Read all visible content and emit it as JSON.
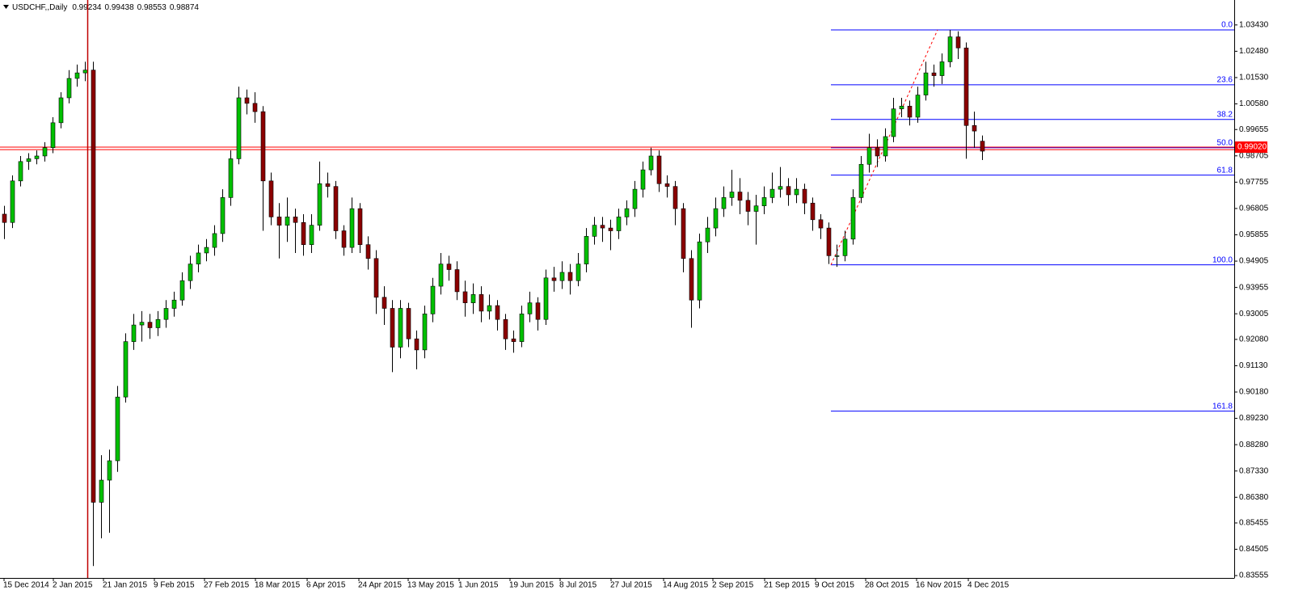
{
  "chart_data": {
    "type": "candlestick",
    "title": "USDCHF,,Daily",
    "header_values": [
      0.99234,
      0.99438,
      0.98553,
      0.98874
    ],
    "up_color": "#00c000",
    "down_color": "#8b0000",
    "wick_color": "#000000",
    "candles": [
      [
        0.966,
        0.969,
        0.957,
        0.963
      ],
      [
        0.963,
        0.98,
        0.961,
        0.978
      ],
      [
        0.978,
        0.987,
        0.976,
        0.985
      ],
      [
        0.985,
        0.988,
        0.982,
        0.986
      ],
      [
        0.986,
        0.989,
        0.984,
        0.987
      ],
      [
        0.987,
        0.992,
        0.985,
        0.99
      ],
      [
        0.99,
        1.001,
        0.988,
        0.999
      ],
      [
        0.999,
        1.01,
        0.997,
        1.008
      ],
      [
        1.008,
        1.018,
        1.006,
        1.015
      ],
      [
        1.015,
        1.02,
        1.012,
        1.017
      ],
      [
        1.017,
        1.021,
        1.014,
        1.018
      ],
      [
        1.018,
        1.021,
        0.839,
        0.862
      ],
      [
        0.862,
        0.879,
        0.849,
        0.87
      ],
      [
        0.87,
        0.881,
        0.851,
        0.877
      ],
      [
        0.877,
        0.904,
        0.873,
        0.9
      ],
      [
        0.9,
        0.923,
        0.898,
        0.92
      ],
      [
        0.92,
        0.93,
        0.917,
        0.926
      ],
      [
        0.926,
        0.931,
        0.92,
        0.927
      ],
      [
        0.927,
        0.93,
        0.921,
        0.925
      ],
      [
        0.925,
        0.931,
        0.922,
        0.928
      ],
      [
        0.928,
        0.935,
        0.925,
        0.932
      ],
      [
        0.932,
        0.938,
        0.929,
        0.935
      ],
      [
        0.935,
        0.945,
        0.933,
        0.942
      ],
      [
        0.942,
        0.951,
        0.939,
        0.948
      ],
      [
        0.948,
        0.955,
        0.945,
        0.952
      ],
      [
        0.952,
        0.957,
        0.949,
        0.954
      ],
      [
        0.954,
        0.962,
        0.951,
        0.959
      ],
      [
        0.959,
        0.975,
        0.956,
        0.972
      ],
      [
        0.972,
        0.989,
        0.969,
        0.986
      ],
      [
        0.986,
        1.012,
        0.984,
        1.008
      ],
      [
        1.008,
        1.011,
        1.002,
        1.006
      ],
      [
        1.006,
        1.01,
        0.999,
        1.003
      ],
      [
        1.003,
        1.005,
        0.96,
        0.978
      ],
      [
        0.978,
        0.981,
        0.962,
        0.965
      ],
      [
        0.965,
        0.97,
        0.95,
        0.962
      ],
      [
        0.962,
        0.972,
        0.956,
        0.965
      ],
      [
        0.965,
        0.968,
        0.952,
        0.963
      ],
      [
        0.963,
        0.966,
        0.951,
        0.955
      ],
      [
        0.955,
        0.966,
        0.952,
        0.962
      ],
      [
        0.962,
        0.985,
        0.96,
        0.977
      ],
      [
        0.977,
        0.981,
        0.972,
        0.976
      ],
      [
        0.976,
        0.978,
        0.957,
        0.96
      ],
      [
        0.96,
        0.962,
        0.951,
        0.954
      ],
      [
        0.954,
        0.972,
        0.952,
        0.968
      ],
      [
        0.968,
        0.97,
        0.952,
        0.955
      ],
      [
        0.955,
        0.958,
        0.946,
        0.95
      ],
      [
        0.95,
        0.953,
        0.93,
        0.936
      ],
      [
        0.936,
        0.94,
        0.926,
        0.932
      ],
      [
        0.932,
        0.935,
        0.909,
        0.918
      ],
      [
        0.918,
        0.935,
        0.914,
        0.932
      ],
      [
        0.932,
        0.934,
        0.918,
        0.921
      ],
      [
        0.921,
        0.924,
        0.91,
        0.917
      ],
      [
        0.917,
        0.933,
        0.914,
        0.93
      ],
      [
        0.93,
        0.943,
        0.927,
        0.94
      ],
      [
        0.94,
        0.952,
        0.937,
        0.948
      ],
      [
        0.948,
        0.951,
        0.942,
        0.946
      ],
      [
        0.946,
        0.949,
        0.935,
        0.938
      ],
      [
        0.938,
        0.942,
        0.929,
        0.934
      ],
      [
        0.934,
        0.941,
        0.93,
        0.937
      ],
      [
        0.937,
        0.94,
        0.927,
        0.931
      ],
      [
        0.931,
        0.937,
        0.928,
        0.933
      ],
      [
        0.933,
        0.935,
        0.924,
        0.928
      ],
      [
        0.928,
        0.93,
        0.917,
        0.921
      ],
      [
        0.921,
        0.924,
        0.916,
        0.92
      ],
      [
        0.92,
        0.933,
        0.918,
        0.93
      ],
      [
        0.93,
        0.938,
        0.927,
        0.934
      ],
      [
        0.934,
        0.936,
        0.924,
        0.928
      ],
      [
        0.928,
        0.946,
        0.926,
        0.943
      ],
      [
        0.943,
        0.947,
        0.938,
        0.942
      ],
      [
        0.942,
        0.949,
        0.939,
        0.945
      ],
      [
        0.945,
        0.948,
        0.937,
        0.942
      ],
      [
        0.942,
        0.952,
        0.94,
        0.948
      ],
      [
        0.948,
        0.961,
        0.945,
        0.958
      ],
      [
        0.958,
        0.965,
        0.955,
        0.962
      ],
      [
        0.962,
        0.965,
        0.956,
        0.961
      ],
      [
        0.961,
        0.964,
        0.953,
        0.96
      ],
      [
        0.96,
        0.968,
        0.957,
        0.965
      ],
      [
        0.965,
        0.971,
        0.962,
        0.968
      ],
      [
        0.968,
        0.978,
        0.965,
        0.975
      ],
      [
        0.975,
        0.985,
        0.972,
        0.982
      ],
      [
        0.982,
        0.99,
        0.98,
        0.987
      ],
      [
        0.987,
        0.989,
        0.974,
        0.977
      ],
      [
        0.977,
        0.98,
        0.972,
        0.976
      ],
      [
        0.976,
        0.978,
        0.962,
        0.968
      ],
      [
        0.968,
        0.97,
        0.945,
        0.95
      ],
      [
        0.95,
        0.953,
        0.925,
        0.935
      ],
      [
        0.935,
        0.959,
        0.932,
        0.956
      ],
      [
        0.956,
        0.965,
        0.952,
        0.961
      ],
      [
        0.961,
        0.972,
        0.958,
        0.968
      ],
      [
        0.968,
        0.976,
        0.965,
        0.972
      ],
      [
        0.972,
        0.982,
        0.969,
        0.974
      ],
      [
        0.974,
        0.979,
        0.966,
        0.971
      ],
      [
        0.971,
        0.974,
        0.962,
        0.967
      ],
      [
        0.967,
        0.973,
        0.955,
        0.969
      ],
      [
        0.969,
        0.976,
        0.966,
        0.972
      ],
      [
        0.972,
        0.981,
        0.97,
        0.975
      ],
      [
        0.975,
        0.983,
        0.972,
        0.976
      ],
      [
        0.976,
        0.979,
        0.969,
        0.973
      ],
      [
        0.973,
        0.979,
        0.97,
        0.975
      ],
      [
        0.975,
        0.977,
        0.966,
        0.97
      ],
      [
        0.97,
        0.972,
        0.96,
        0.964
      ],
      [
        0.964,
        0.966,
        0.957,
        0.961
      ],
      [
        0.961,
        0.963,
        0.948,
        0.951
      ],
      [
        0.951,
        0.955,
        0.947,
        0.951
      ],
      [
        0.951,
        0.96,
        0.949,
        0.957
      ],
      [
        0.957,
        0.975,
        0.955,
        0.972
      ],
      [
        0.972,
        0.987,
        0.97,
        0.984
      ],
      [
        0.984,
        0.995,
        0.981,
        0.99
      ],
      [
        0.99,
        0.993,
        0.983,
        0.987
      ],
      [
        0.987,
        0.997,
        0.985,
        0.994
      ],
      [
        0.994,
        1.008,
        0.992,
        1.004
      ],
      [
        1.004,
        1.008,
        1.001,
        1.005
      ],
      [
        1.005,
        1.007,
        0.998,
        1.001
      ],
      [
        1.001,
        1.012,
        0.999,
        1.009
      ],
      [
        1.009,
        1.021,
        1.007,
        1.017
      ],
      [
        1.017,
        1.02,
        1.012,
        1.016
      ],
      [
        1.016,
        1.024,
        1.013,
        1.021
      ],
      [
        1.021,
        1.0325,
        1.019,
        1.03
      ],
      [
        1.03,
        1.032,
        1.022,
        1.026
      ],
      [
        1.026,
        1.028,
        0.986,
        0.998
      ],
      [
        0.998,
        1.003,
        0.99,
        0.996
      ],
      [
        0.99234,
        0.99438,
        0.98553,
        0.98874
      ]
    ],
    "ylim": [
      0.8347,
      1.0433
    ],
    "yticks": [
      {
        "value": 1.0343,
        "label": "1.03430"
      },
      {
        "value": 1.0248,
        "label": "1.02480"
      },
      {
        "value": 1.0153,
        "label": "1.01530"
      },
      {
        "value": 1.0058,
        "label": "1.00580"
      },
      {
        "value": 0.99655,
        "label": "0.99655"
      },
      {
        "value": 0.98705,
        "label": "0.98705"
      },
      {
        "value": 0.97755,
        "label": "0.97755"
      },
      {
        "value": 0.96805,
        "label": "0.96805"
      },
      {
        "value": 0.95855,
        "label": "0.95855"
      },
      {
        "value": 0.94905,
        "label": "0.94905"
      },
      {
        "value": 0.93955,
        "label": "0.93955"
      },
      {
        "value": 0.93005,
        "label": "0.93005"
      },
      {
        "value": 0.9208,
        "label": "0.92080"
      },
      {
        "value": 0.9113,
        "label": "0.91130"
      },
      {
        "value": 0.9018,
        "label": "0.90180"
      },
      {
        "value": 0.8923,
        "label": "0.89230"
      },
      {
        "value": 0.8828,
        "label": "0.88280"
      },
      {
        "value": 0.8733,
        "label": "0.87330"
      },
      {
        "value": 0.8638,
        "label": "0.86380"
      },
      {
        "value": 0.85455,
        "label": "0.85455"
      },
      {
        "value": 0.84505,
        "label": "0.84505"
      },
      {
        "value": 0.83555,
        "label": "0.83555"
      }
    ],
    "xticks": [
      {
        "value": 0,
        "label": "15 Dec 2014"
      },
      {
        "value": 6.1,
        "label": "2 Jan 2015"
      },
      {
        "value": 12.3,
        "label": "21 Jan 2015"
      },
      {
        "value": 18.6,
        "label": "9 Feb 2015"
      },
      {
        "value": 24.8,
        "label": "27 Feb 2015"
      },
      {
        "value": 31.1,
        "label": "18 Mar 2015"
      },
      {
        "value": 37.5,
        "label": "6 Apr 2015"
      },
      {
        "value": 43.9,
        "label": "24 Apr 2015"
      },
      {
        "value": 50,
        "label": "13 May 2015"
      },
      {
        "value": 56.3,
        "label": "1 Jun 2015"
      },
      {
        "value": 62.6,
        "label": "19 Jun 2015"
      },
      {
        "value": 68.8,
        "label": "8 Jul 2015"
      },
      {
        "value": 75.1,
        "label": "27 Jul 2015"
      },
      {
        "value": 81.6,
        "label": "14 Aug 2015"
      },
      {
        "value": 87.7,
        "label": "2 Sep 2015"
      },
      {
        "value": 94.1,
        "label": "21 Sep 2015"
      },
      {
        "value": 100.4,
        "label": "9 Oct 2015"
      },
      {
        "value": 106.6,
        "label": "28 Oct 2015"
      },
      {
        "value": 112.9,
        "label": "16 Nov 2015"
      },
      {
        "value": 119.3,
        "label": "4 Dec 2015"
      }
    ],
    "fibo": {
      "color": "#0000ff",
      "levels": [
        {
          "label": "0.0",
          "price": 1.0325
        },
        {
          "label": "23.6",
          "price": 1.0127
        },
        {
          "label": "38.2",
          "price": 1.0002
        },
        {
          "label": "50.0",
          "price": 0.99
        },
        {
          "label": "61.8",
          "price": 0.9801
        },
        {
          "label": "100.0",
          "price": 0.9477
        },
        {
          "label": "161.8",
          "price": 0.8949
        }
      ]
    },
    "horizontal_lines": {
      "color": "#ff0000",
      "prices": [
        0.9902,
        0.9893
      ]
    },
    "price_label": {
      "value": 0.9902,
      "label": "0.99020",
      "color": "#ff0000"
    }
  }
}
